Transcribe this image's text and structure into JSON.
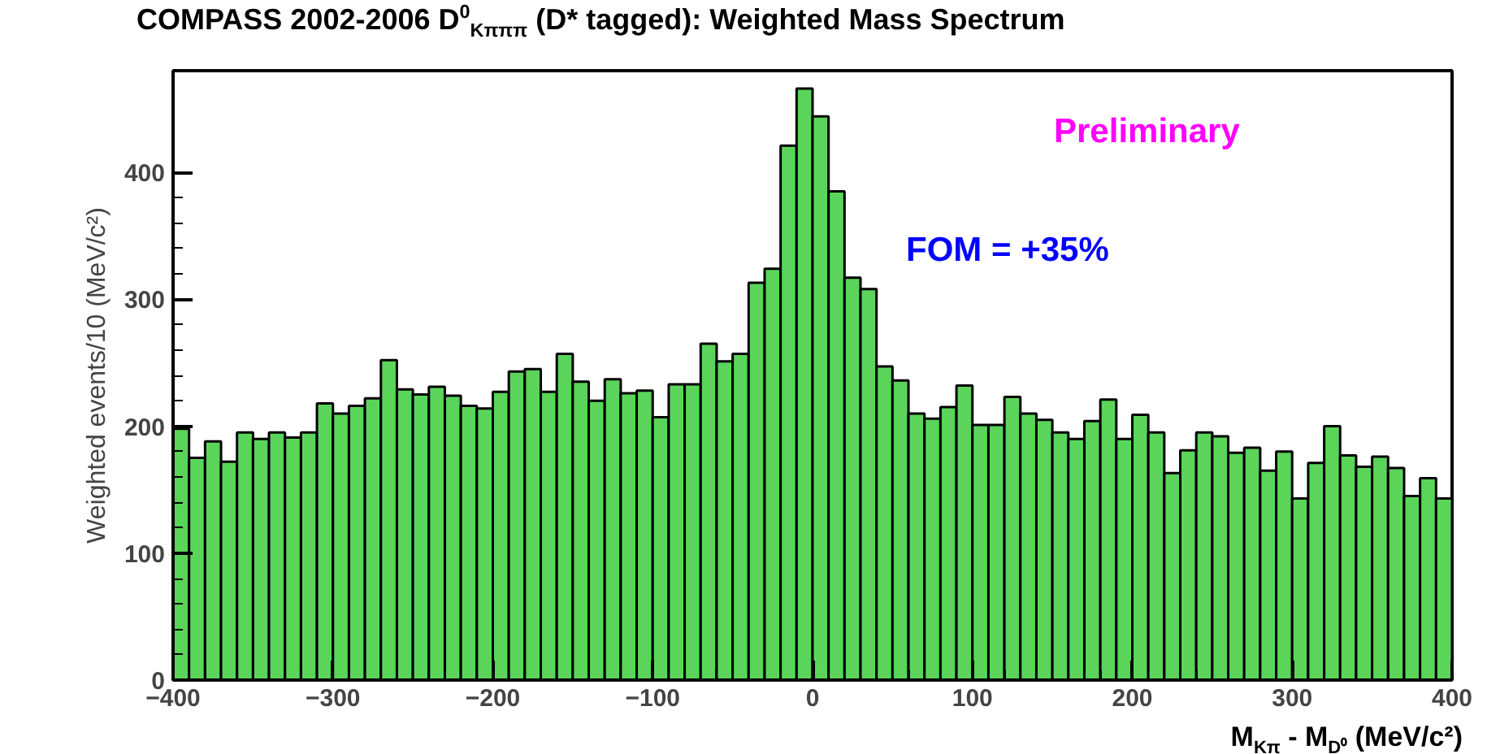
{
  "chart_data": {
    "type": "histogram",
    "title": "COMPASS 2002-2006 D$^{0}$$_{Kπππ}$ (D* tagged): Weighted Mass Spectrum",
    "xlabel": "M$_{Kπ}$ - M$_{D⁰}$ (MeV/c²)",
    "ylabel": "Weighted events/10 (MeV/c²)",
    "annotations": [
      "Preliminary",
      "FOM = +35%"
    ],
    "color": "#5ad55a",
    "bins": [
      -400,
      -390,
      -380,
      -370,
      -360,
      -350,
      -340,
      -330,
      -320,
      -310,
      -300,
      -290,
      -280,
      -270,
      -260,
      -250,
      -240,
      -230,
      -220,
      -210,
      -200,
      -190,
      -180,
      -170,
      -160,
      -150,
      -140,
      -130,
      -120,
      -110,
      -100,
      -90,
      -80,
      -70,
      -60,
      -50,
      -40,
      -30,
      -20,
      -10,
      0,
      10,
      20,
      30,
      40,
      50,
      60,
      70,
      80,
      90,
      100,
      110,
      120,
      130,
      140,
      150,
      160,
      170,
      180,
      190,
      200,
      210,
      220,
      230,
      240,
      250,
      260,
      270,
      280,
      290,
      300,
      310,
      320,
      330,
      340,
      350,
      360,
      370,
      380,
      390,
      400
    ],
    "values": [
      198,
      175,
      188,
      172,
      195,
      190,
      195,
      191,
      195,
      218,
      210,
      216,
      222,
      252,
      229,
      225,
      231,
      224,
      216,
      214,
      227,
      243,
      245,
      227,
      257,
      235,
      220,
      237,
      226,
      228,
      207,
      233,
      233,
      265,
      251,
      257,
      313,
      324,
      421,
      466,
      444,
      385,
      317,
      308,
      247,
      236,
      210,
      206,
      215,
      232,
      201,
      201,
      223,
      210,
      205,
      195,
      190,
      204,
      221,
      190,
      209,
      195,
      163,
      181,
      195,
      192,
      179,
      183,
      165,
      180,
      143,
      171,
      200,
      177,
      168,
      176,
      167,
      145,
      159,
      143
    ],
    "xlim": [
      -400,
      400
    ],
    "ylim": [
      0,
      480
    ],
    "xticks": [
      -400,
      -300,
      -200,
      -100,
      0,
      100,
      200,
      300,
      400
    ],
    "yticks": [
      0,
      100,
      200,
      300,
      400
    ],
    "grid": false
  }
}
